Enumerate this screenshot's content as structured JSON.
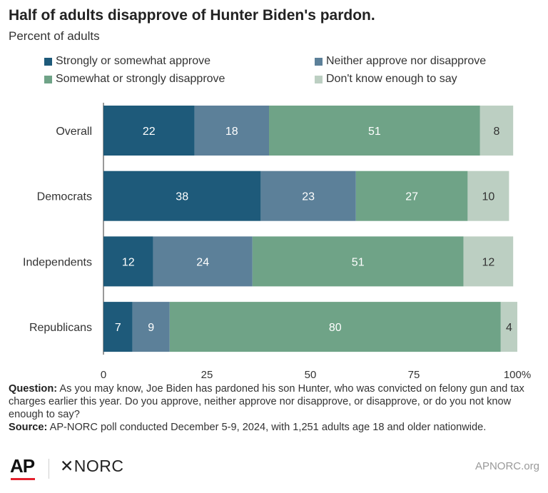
{
  "chart_data": {
    "type": "bar",
    "orientation": "horizontal",
    "stacked": true,
    "title": "Half of adults disapprove of Hunter Biden's pardon.",
    "subtitle": "Percent of adults",
    "categories": [
      "Overall",
      "Democrats",
      "Independents",
      "Republicans"
    ],
    "series": [
      {
        "name": "Strongly or somewhat approve",
        "color": "#1e5a7a",
        "values": [
          22,
          38,
          12,
          7
        ]
      },
      {
        "name": "Neither approve nor disapprove",
        "color": "#5c8099",
        "values": [
          18,
          23,
          24,
          9
        ]
      },
      {
        "name": "Somewhat or strongly disapprove",
        "color": "#6fa387",
        "values": [
          51,
          27,
          51,
          80
        ]
      },
      {
        "name": "Don't know enough to say",
        "color": "#bccfc2",
        "values": [
          8,
          10,
          12,
          4
        ]
      }
    ],
    "xlim": [
      0,
      100
    ],
    "x_ticks": [
      "0",
      "25",
      "50",
      "75",
      "100%"
    ],
    "x_tick_values": [
      0,
      25,
      50,
      75,
      100
    ],
    "grid": false,
    "legend_position": "top"
  },
  "notes": {
    "question_label": "Question:",
    "question_text": "As you may know, Joe Biden has pardoned his son Hunter, who was convicted on felony gun and tax charges earlier this year. Do you approve, neither approve nor disapprove, or disapprove, or do you not know enough to say?",
    "source_label": "Source:",
    "source_text": "AP-NORC poll conducted December 5-9, 2024, with 1,251 adults age 18 and older nationwide."
  },
  "footer": {
    "ap_logo": "AP",
    "norc_logo": "✕NORC",
    "site": "APNORC.org"
  }
}
